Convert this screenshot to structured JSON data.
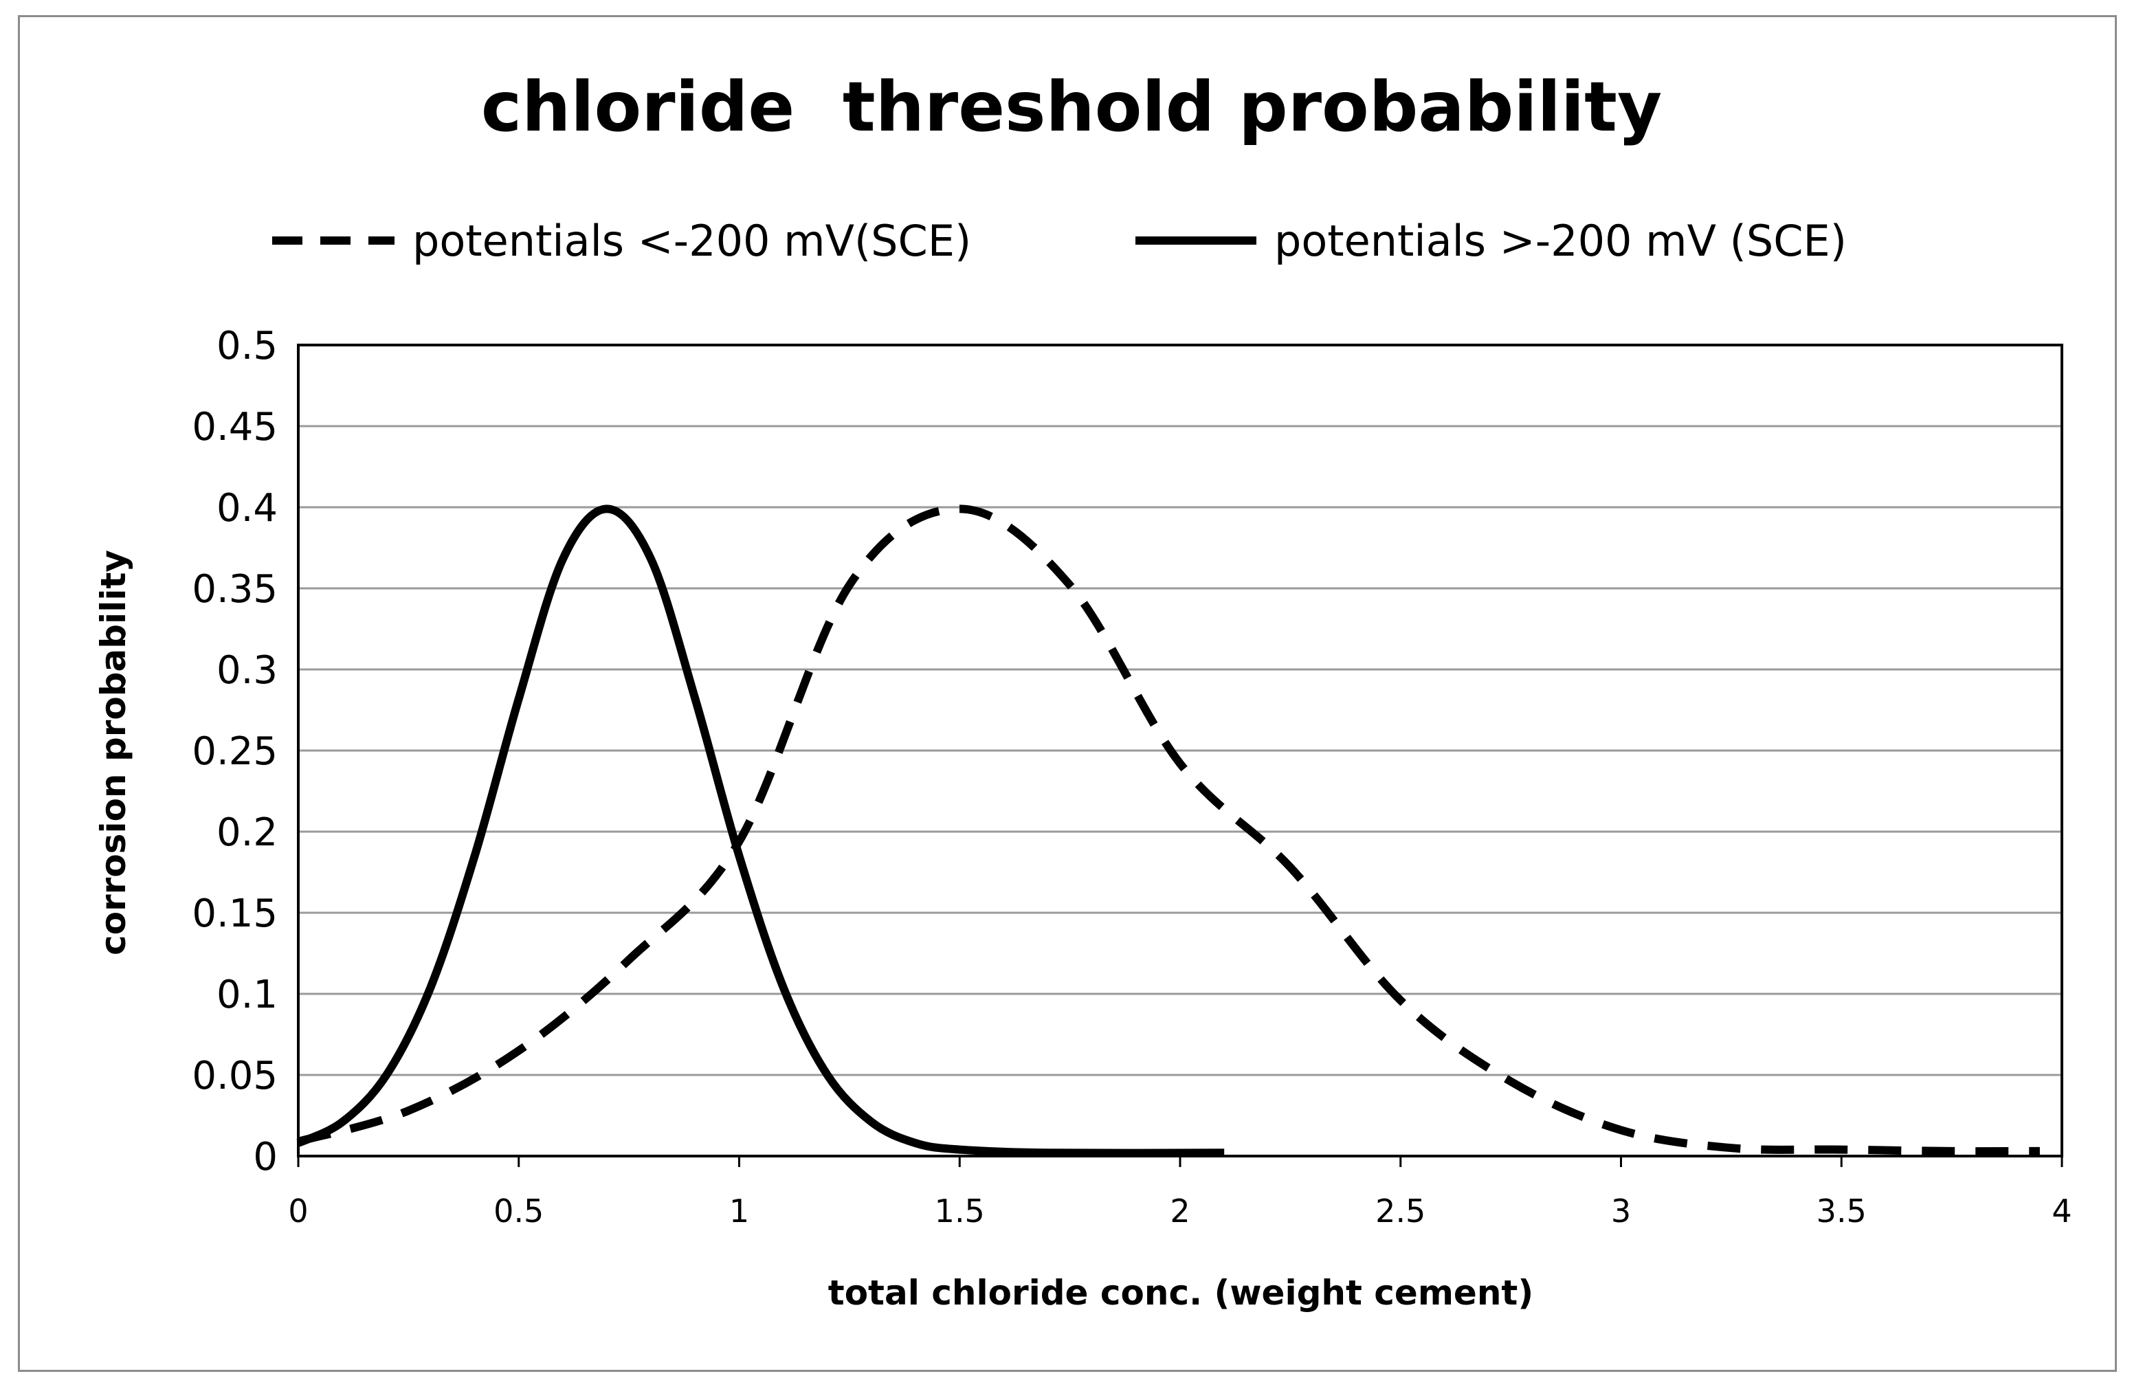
{
  "chart_data": {
    "type": "line",
    "title": "chloride  threshold probability",
    "xlabel": "total chloride conc. (weight cement)",
    "ylabel": "corrosion probability",
    "xlim": [
      0,
      4
    ],
    "ylim": [
      0,
      0.5
    ],
    "x_ticks": [
      "0",
      "0.5",
      "1",
      "1.5",
      "2",
      "2.5",
      "3",
      "3.5",
      "4"
    ],
    "y_ticks": [
      "0",
      "0.05",
      "0.1",
      "0.15",
      "0.2",
      "0.25",
      "0.3",
      "0.35",
      "0.4",
      "0.45",
      "0.5"
    ],
    "grid": "horizontal",
    "legend_position": "top",
    "series": [
      {
        "name": "potentials <-200 mV(SCE)",
        "style": "dashed",
        "color": "#000000",
        "x": [
          0,
          0.25,
          0.5,
          0.75,
          1,
          1.25,
          1.5,
          1.75,
          2,
          2.25,
          2.5,
          2.75,
          3,
          3.25,
          3.5,
          3.75,
          3.95
        ],
        "y": [
          0.009,
          0.028,
          0.065,
          0.121,
          0.194,
          0.352,
          0.399,
          0.352,
          0.242,
          0.178,
          0.096,
          0.046,
          0.016,
          0.005,
          0.004,
          0.003,
          0.003
        ]
      },
      {
        "name": "potentials >-200 mV (SCE)",
        "style": "solid",
        "color": "#000000",
        "x": [
          0,
          0.1,
          0.2,
          0.3,
          0.4,
          0.5,
          0.6,
          0.7,
          0.8,
          0.9,
          1.0,
          1.1,
          1.2,
          1.3,
          1.4,
          1.5,
          1.7,
          2.1
        ],
        "y": [
          0.008,
          0.021,
          0.05,
          0.104,
          0.185,
          0.282,
          0.368,
          0.399,
          0.368,
          0.282,
          0.185,
          0.104,
          0.05,
          0.021,
          0.008,
          0.004,
          0.002,
          0.002
        ]
      }
    ]
  }
}
